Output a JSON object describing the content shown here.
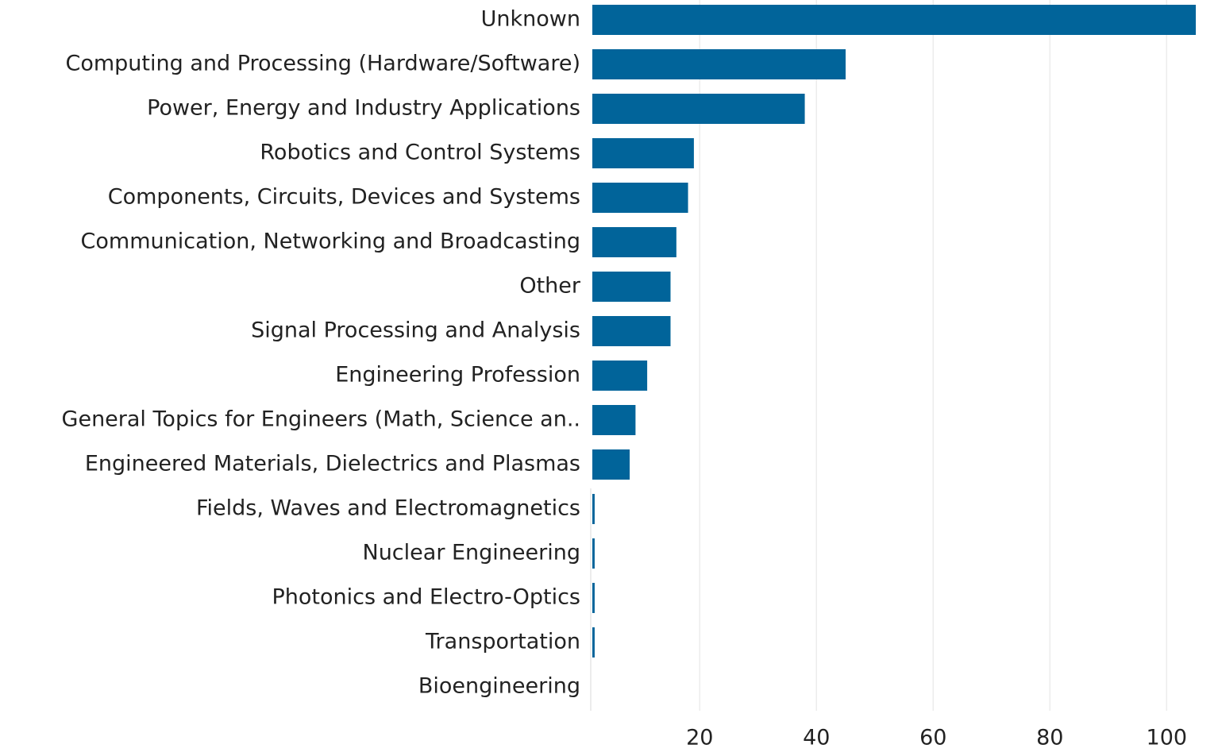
{
  "chart_data": {
    "type": "barh",
    "categories": [
      "Unknown",
      "Computing and Processing (Hardware/Software)",
      "Power, Energy and Industry Applications",
      "Robotics and Control Systems",
      "Components, Circuits, Devices and Systems",
      "Communication, Networking and Broadcasting",
      "Other",
      "Signal Processing and Analysis",
      "Engineering Profession",
      "General Topics for Engineers (Math, Science an..",
      "Engineered Materials, Dielectrics and Plasmas",
      "Fields, Waves and Electromagnetics",
      "Nuclear Engineering",
      "Photonics and Electro-Optics",
      "Transportation",
      "Bioengineering"
    ],
    "values": [
      105,
      45,
      38,
      19,
      18,
      16,
      15,
      15,
      11,
      9,
      8,
      2,
      2,
      2,
      2,
      0
    ],
    "color": "#01649a",
    "xlim": [
      1.6,
      108.8
    ],
    "xticks": [
      20,
      40,
      60,
      80,
      100
    ],
    "grid": true
  }
}
